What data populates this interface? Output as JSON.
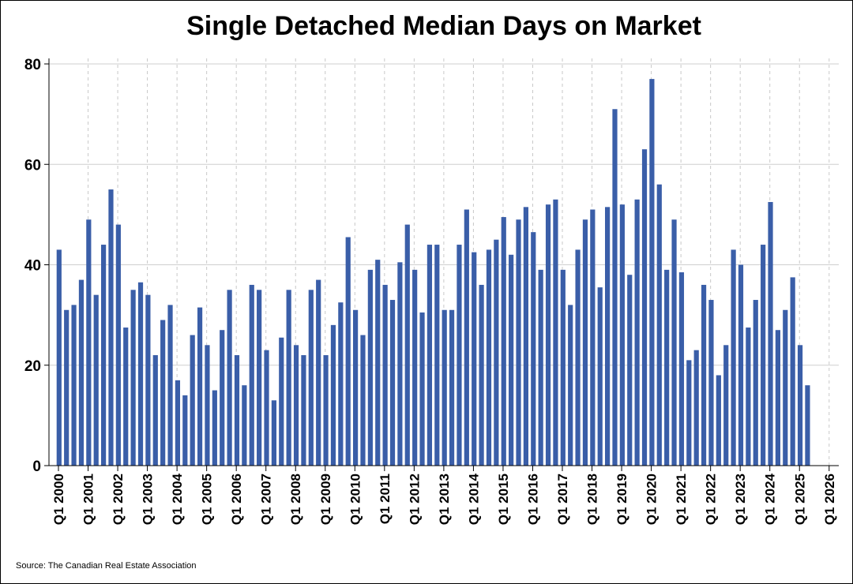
{
  "source": "Source: The Canadian Real Estate Association",
  "chart_data": {
    "type": "bar",
    "title": "Single Detached Median Days on Market",
    "xlabel": "",
    "ylabel": "",
    "ylim": [
      0,
      80
    ],
    "yticks": [
      0,
      20,
      40,
      60,
      80
    ],
    "grid": true,
    "bar_color": "#3a5ea8",
    "xticks": [
      "Q1 2000",
      "Q1 2001",
      "Q1 2002",
      "Q1 2003",
      "Q1 2004",
      "Q1 2005",
      "Q1 2006",
      "Q1 2007",
      "Q1 2008",
      "Q1 2009",
      "Q1 2010",
      "Q1 2011",
      "Q1 2012",
      "Q1 2013",
      "Q1 2014",
      "Q1 2015",
      "Q1 2016",
      "Q1 2017",
      "Q1 2018",
      "Q1 2019",
      "Q1 2020",
      "Q1 2021",
      "Q1 2022",
      "Q1 2023",
      "Q1 2024",
      "Q1 2025",
      "Q1 2026"
    ],
    "categories": [
      "Q1 2000",
      "Q2 2000",
      "Q3 2000",
      "Q4 2000",
      "Q1 2001",
      "Q2 2001",
      "Q3 2001",
      "Q4 2001",
      "Q1 2002",
      "Q2 2002",
      "Q3 2002",
      "Q4 2002",
      "Q1 2003",
      "Q2 2003",
      "Q3 2003",
      "Q4 2003",
      "Q1 2004",
      "Q2 2004",
      "Q3 2004",
      "Q4 2004",
      "Q1 2005",
      "Q2 2005",
      "Q3 2005",
      "Q4 2005",
      "Q1 2006",
      "Q2 2006",
      "Q3 2006",
      "Q4 2006",
      "Q1 2007",
      "Q2 2007",
      "Q3 2007",
      "Q4 2007",
      "Q1 2008",
      "Q2 2008",
      "Q3 2008",
      "Q4 2008",
      "Q1 2009",
      "Q2 2009",
      "Q3 2009",
      "Q4 2009",
      "Q1 2010",
      "Q2 2010",
      "Q3 2010",
      "Q4 2010",
      "Q1 2011",
      "Q2 2011",
      "Q3 2011",
      "Q4 2011",
      "Q1 2012",
      "Q2 2012",
      "Q3 2012",
      "Q4 2012",
      "Q1 2013",
      "Q2 2013",
      "Q3 2013",
      "Q4 2013",
      "Q1 2014",
      "Q2 2014",
      "Q3 2014",
      "Q4 2014",
      "Q1 2015",
      "Q2 2015",
      "Q3 2015",
      "Q4 2015",
      "Q1 2016",
      "Q2 2016",
      "Q3 2016",
      "Q4 2016",
      "Q1 2017",
      "Q2 2017",
      "Q3 2017",
      "Q4 2017",
      "Q1 2018",
      "Q2 2018",
      "Q3 2018",
      "Q4 2018",
      "Q1 2019",
      "Q2 2019",
      "Q3 2019",
      "Q4 2019",
      "Q1 2020",
      "Q2 2020",
      "Q3 2020",
      "Q4 2020",
      "Q1 2021",
      "Q2 2021",
      "Q3 2021",
      "Q4 2021",
      "Q1 2022",
      "Q2 2022",
      "Q3 2022",
      "Q4 2022",
      "Q1 2023",
      "Q2 2023",
      "Q3 2023",
      "Q4 2023",
      "Q1 2024",
      "Q2 2024",
      "Q3 2024",
      "Q4 2024",
      "Q1 2025",
      "Q2 2025"
    ],
    "values": [
      43,
      31,
      32,
      37,
      49,
      34,
      44,
      55,
      48,
      27.5,
      35,
      36.5,
      34,
      22,
      29,
      32,
      17,
      14,
      26,
      31.5,
      24,
      15,
      27,
      35,
      22,
      16,
      36,
      35,
      23,
      13,
      25.5,
      35,
      24,
      22,
      35,
      37,
      22,
      28,
      32.5,
      45.5,
      31,
      26,
      39,
      41,
      36,
      33,
      40.5,
      48,
      39,
      30.5,
      44,
      44,
      31,
      31,
      44,
      51,
      42.5,
      36,
      43,
      45,
      49.5,
      42,
      49,
      51.5,
      46.5,
      39,
      52,
      53,
      39,
      32,
      43,
      49,
      51,
      35.5,
      51.5,
      71,
      52,
      38,
      53,
      63,
      77,
      56,
      39,
      49,
      38.5,
      21,
      23,
      36,
      33,
      18,
      24,
      43,
      40,
      27.5,
      33,
      44,
      52.5,
      27,
      31,
      37.5,
      24,
      16
    ]
  }
}
